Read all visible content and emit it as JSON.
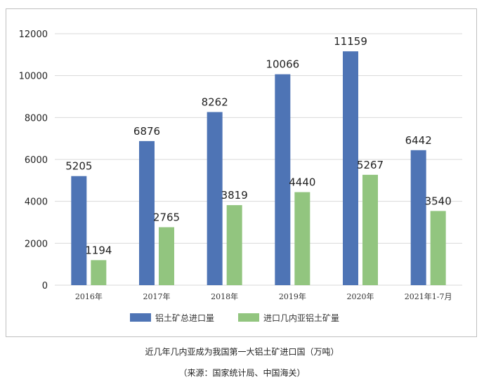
{
  "chart_data": {
    "type": "bar",
    "title": "近几年几内亚成为我国第一大铝土矿进口国（万吨）",
    "source": "（来源：国家统计局、中国海关）",
    "categories": [
      "2016年",
      "2017年",
      "2018年",
      "2019年",
      "2020年",
      "2021年1-7月"
    ],
    "series": [
      {
        "name": "铝土矿总进口量",
        "color": "#4e74b5",
        "values": [
          5205,
          6876,
          8262,
          10066,
          11159,
          6442
        ]
      },
      {
        "name": "进口几内亚铝土矿量",
        "color": "#92c57f",
        "values": [
          1194,
          2765,
          3819,
          4440,
          5267,
          3540
        ]
      }
    ],
    "ylim": [
      0,
      12000
    ],
    "yticks": [
      0,
      2000,
      4000,
      6000,
      8000,
      10000,
      12000
    ],
    "grid": true,
    "legend": "bottom"
  }
}
